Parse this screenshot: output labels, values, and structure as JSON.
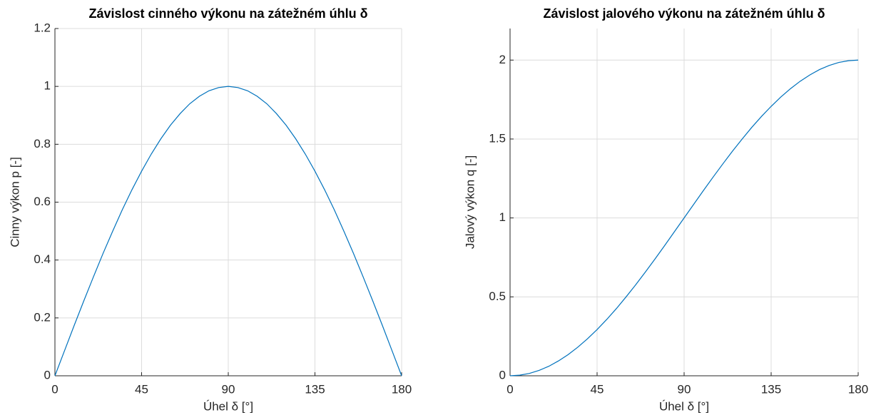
{
  "chart_data": [
    {
      "type": "line",
      "title": "Závislost cinného výkonu na zátežném úhlu δ",
      "x_label": "Úhel δ [°]",
      "y_label": "Cinny výkon p [-]",
      "x": [
        0,
        5,
        10,
        15,
        20,
        25,
        30,
        35,
        40,
        45,
        50,
        55,
        60,
        65,
        70,
        75,
        80,
        85,
        90,
        95,
        100,
        105,
        110,
        115,
        120,
        125,
        130,
        135,
        140,
        145,
        150,
        155,
        160,
        165,
        170,
        175,
        180
      ],
      "series": [
        {
          "name": "p",
          "color": "#0072bd",
          "values": [
            0,
            0.087,
            0.174,
            0.259,
            0.342,
            0.423,
            0.5,
            0.574,
            0.643,
            0.707,
            0.766,
            0.819,
            0.866,
            0.906,
            0.94,
            0.966,
            0.985,
            0.996,
            1,
            0.996,
            0.985,
            0.966,
            0.94,
            0.906,
            0.866,
            0.819,
            0.766,
            0.707,
            0.643,
            0.574,
            0.5,
            0.423,
            0.342,
            0.259,
            0.174,
            0.087,
            0
          ]
        }
      ],
      "xlim": [
        0,
        180
      ],
      "xticks": [
        0,
        45,
        90,
        135,
        180
      ],
      "ylim": [
        0,
        1.2
      ],
      "yticks": [
        0,
        0.2,
        0.4,
        0.6,
        0.8,
        1,
        1.2
      ],
      "grid": true
    },
    {
      "type": "line",
      "title": "Závislost jalového výkonu na zátežném úhlu δ",
      "x_label": "Úhel δ [°]",
      "y_label": "Jalový výkon q [-]",
      "x": [
        0,
        5,
        10,
        15,
        20,
        25,
        30,
        35,
        40,
        45,
        50,
        55,
        60,
        65,
        70,
        75,
        80,
        85,
        90,
        95,
        100,
        105,
        110,
        115,
        120,
        125,
        130,
        135,
        140,
        145,
        150,
        155,
        160,
        165,
        170,
        175,
        180
      ],
      "series": [
        {
          "name": "q",
          "color": "#0072bd",
          "values": [
            0,
            0.004,
            0.015,
            0.034,
            0.06,
            0.094,
            0.134,
            0.181,
            0.234,
            0.293,
            0.357,
            0.426,
            0.5,
            0.577,
            0.658,
            0.741,
            0.826,
            0.913,
            1,
            1.087,
            1.174,
            1.259,
            1.342,
            1.423,
            1.5,
            1.574,
            1.643,
            1.707,
            1.766,
            1.819,
            1.866,
            1.906,
            1.94,
            1.966,
            1.985,
            1.996,
            2
          ]
        }
      ],
      "xlim": [
        0,
        180
      ],
      "xticks": [
        0,
        45,
        90,
        135,
        180
      ],
      "ylim": [
        0,
        2.2
      ],
      "yticks": [
        0,
        0.5,
        1,
        1.5,
        2
      ],
      "grid": true
    }
  ]
}
